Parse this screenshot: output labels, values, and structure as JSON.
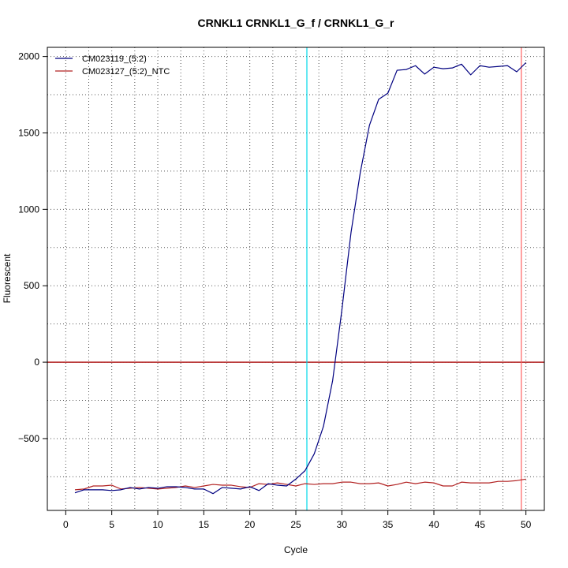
{
  "chart_data": {
    "type": "line",
    "title": "CRNKL1  CRNKL1_G_f / CRNKL1_G_r",
    "xlabel": "Cycle",
    "ylabel": "Fluorescent",
    "xlim": [
      -2,
      52
    ],
    "ylim": [
      -970,
      2060
    ],
    "x_ticks": [
      0,
      5,
      10,
      15,
      20,
      25,
      30,
      35,
      40,
      45,
      50
    ],
    "y_ticks": [
      -500,
      0,
      500,
      1000,
      1500,
      2000
    ],
    "x_ticks_minor": [
      2.5,
      7.5,
      12.5,
      17.5,
      22.5,
      27.5,
      32.5,
      37.5,
      42.5,
      47.5
    ],
    "y_ticks_minor": [
      -750,
      -250,
      250,
      750,
      1250,
      1750
    ],
    "grid": true,
    "legend_position": "top-left",
    "reference_lines": {
      "horizontal": {
        "y": 0,
        "color": "#b22222"
      },
      "vertical_threshold": {
        "x": 26.2,
        "color": "#00d8e8"
      },
      "vertical_end": {
        "x": 49.5,
        "color": "#ff6060"
      }
    },
    "series": [
      {
        "name": "CM023119_(5:2)",
        "color": "#000080",
        "x": [
          1,
          2,
          3,
          4,
          5,
          6,
          7,
          8,
          9,
          10,
          11,
          12,
          13,
          14,
          15,
          16,
          17,
          18,
          19,
          20,
          21,
          22,
          23,
          24,
          25,
          26,
          27,
          28,
          29,
          30,
          31,
          32,
          33,
          34,
          35,
          36,
          37,
          38,
          39,
          40,
          41,
          42,
          43,
          44,
          45,
          46,
          47,
          48,
          49,
          50
        ],
        "y": [
          -855,
          -835,
          -835,
          -835,
          -840,
          -835,
          -820,
          -830,
          -820,
          -825,
          -815,
          -815,
          -820,
          -830,
          -830,
          -860,
          -820,
          -825,
          -830,
          -815,
          -840,
          -795,
          -805,
          -810,
          -765,
          -710,
          -600,
          -420,
          -120,
          340,
          850,
          1240,
          1550,
          1720,
          1760,
          1910,
          1915,
          1940,
          1885,
          1930,
          1920,
          1925,
          1950,
          1880,
          1940,
          1930,
          1935,
          1940,
          1900,
          1960
        ]
      },
      {
        "name": "CM023127_(5:2)_NTC",
        "color": "#b22222",
        "x": [
          1,
          2,
          3,
          4,
          5,
          6,
          7,
          8,
          9,
          10,
          11,
          12,
          13,
          14,
          15,
          16,
          17,
          18,
          19,
          20,
          21,
          22,
          23,
          24,
          25,
          26,
          27,
          28,
          29,
          30,
          31,
          32,
          33,
          34,
          35,
          36,
          37,
          38,
          39,
          40,
          41,
          42,
          43,
          44,
          45,
          46,
          47,
          48,
          49,
          50
        ],
        "y": [
          -835,
          -830,
          -810,
          -810,
          -805,
          -830,
          -825,
          -820,
          -825,
          -830,
          -825,
          -820,
          -810,
          -820,
          -810,
          -800,
          -805,
          -805,
          -815,
          -820,
          -795,
          -800,
          -790,
          -800,
          -810,
          -795,
          -800,
          -795,
          -795,
          -785,
          -785,
          -795,
          -795,
          -790,
          -810,
          -800,
          -785,
          -795,
          -785,
          -790,
          -810,
          -810,
          -785,
          -790,
          -790,
          -790,
          -780,
          -780,
          -775,
          -765
        ]
      }
    ]
  }
}
